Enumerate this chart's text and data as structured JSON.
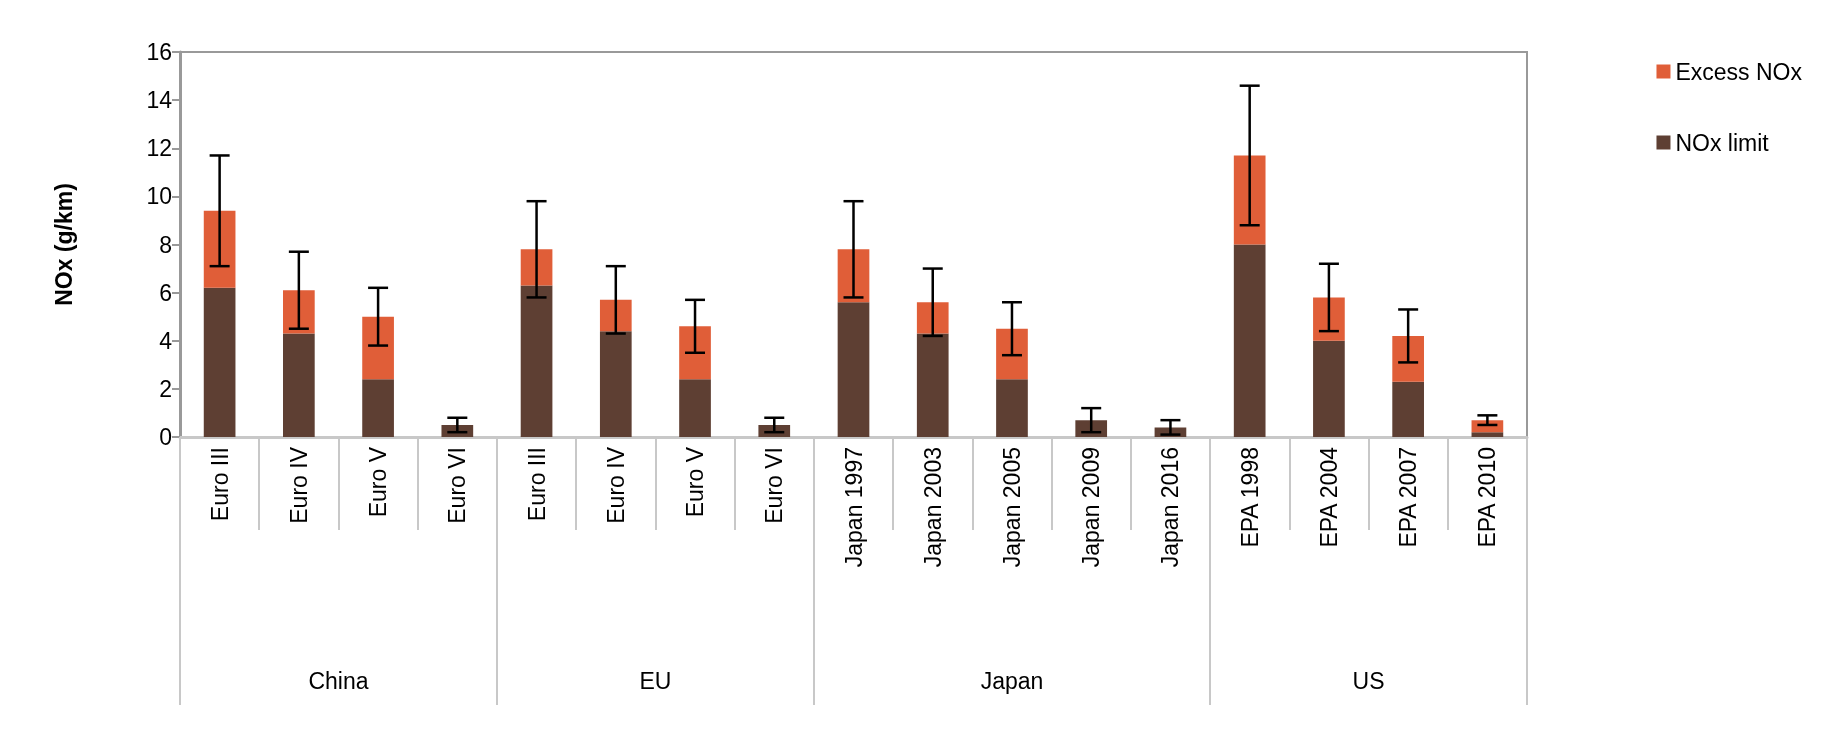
{
  "chart_data": {
    "type": "bar",
    "stacked": true,
    "ylabel": "NOx (g/km)",
    "categories": [
      "Euro III",
      "Euro IV",
      "Euro V",
      "Euro VI",
      "Euro III",
      "Euro IV",
      "Euro V",
      "Euro VI",
      "Japan 1997",
      "Japan 2003",
      "Japan 2005",
      "Japan 2009",
      "Japan 2016",
      "EPA 1998",
      "EPA 2004",
      "EPA 2007",
      "EPA 2010"
    ],
    "series": [
      {
        "name": "NOx limit",
        "color": "#5e3f33",
        "values": [
          6.2,
          4.3,
          2.4,
          0.5,
          6.3,
          4.4,
          2.4,
          0.5,
          5.6,
          4.3,
          2.4,
          0.7,
          0.4,
          8.0,
          4.0,
          2.3,
          0.2
        ]
      },
      {
        "name": "Excess NOx",
        "color": "#e05e38",
        "values": [
          3.2,
          1.8,
          2.6,
          0,
          1.5,
          1.3,
          2.2,
          0,
          2.2,
          1.3,
          2.1,
          0,
          0,
          3.7,
          1.8,
          1.9,
          0.5
        ],
        "errors": [
          2.3,
          1.6,
          1.2,
          0.3,
          2.0,
          1.4,
          1.1,
          0.3,
          2.0,
          1.4,
          1.1,
          0.5,
          0.3,
          2.9,
          1.4,
          1.1,
          0.2
        ]
      }
    ],
    "ylim": [
      0,
      16
    ],
    "yticks": [
      0,
      2,
      4,
      6,
      8,
      10,
      12,
      14,
      16
    ],
    "grid": false,
    "legend": "top right",
    "annotations": [
      "China",
      "EU",
      "Japan",
      "US"
    ]
  }
}
